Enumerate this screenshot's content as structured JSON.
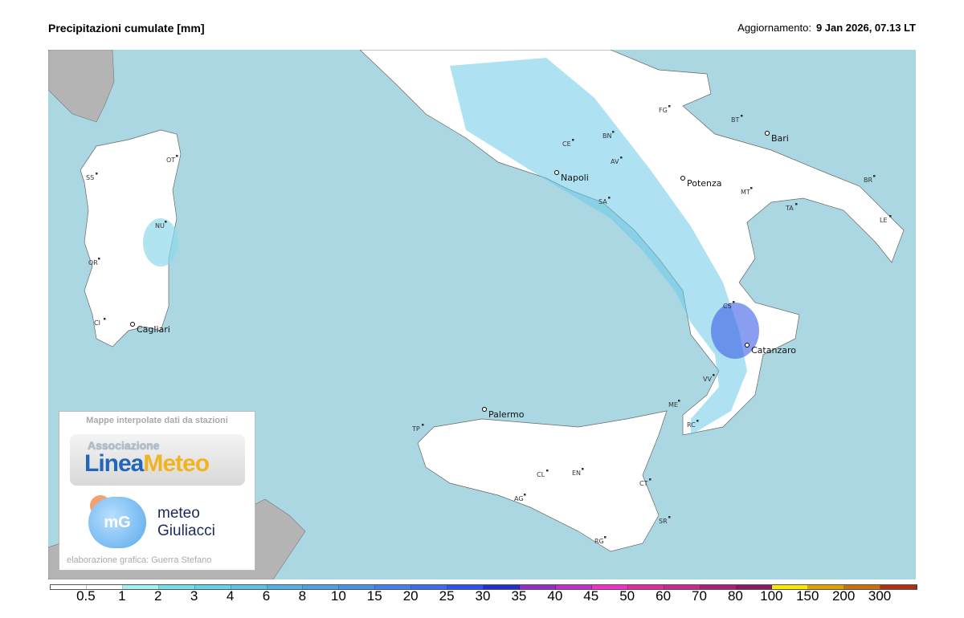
{
  "header": {
    "title": "Precipitazioni cumulate [mm]",
    "update_label": "Aggiornamento:",
    "update_value": "9 Jan 2026, 07.13 LT"
  },
  "colors": {
    "sea": "#abd7e3",
    "land": "#ffffff",
    "foreign_land": "#b4b4b4",
    "border": "#888888"
  },
  "cities": {
    "big": [
      "Napoli",
      "Potenza",
      "Bari",
      "Catanzaro",
      "Palermo",
      "Cagliari"
    ],
    "small": [
      "FG",
      "BT",
      "BR",
      "TA",
      "LE",
      "MT",
      "CE",
      "BN",
      "AV",
      "SA",
      "CS",
      "VV",
      "RC",
      "ME",
      "TP",
      "CL",
      "EN",
      "AG",
      "CT",
      "SR",
      "RG",
      "SS",
      "OT",
      "NU",
      "OR",
      "CI"
    ]
  },
  "logo": {
    "caption": "Mappe interpolate dati da stazioni",
    "linea_assoc": "Associazione",
    "linea_a": "Linea",
    "linea_b": "Meteo",
    "mg_icon": "mG",
    "mg_line1": "meteo",
    "mg_line2": "Giuliacci",
    "credit": "elaborazione grafica: Guerra Stefano"
  },
  "legend": {
    "ticks": [
      "0.5",
      "1",
      "2",
      "3",
      "4",
      "6",
      "8",
      "10",
      "15",
      "20",
      "25",
      "30",
      "35",
      "40",
      "45",
      "50",
      "60",
      "70",
      "80",
      "100",
      "150",
      "200",
      "300"
    ],
    "colors": [
      "#ffffff",
      "#ffffff",
      "#a6f2f2",
      "#74dfe8",
      "#64d2e8",
      "#5cc2e8",
      "#56b0e8",
      "#50a0e8",
      "#4a90ea",
      "#4280ec",
      "#3a6eee",
      "#3052f0",
      "#2030c8",
      "#9030c8",
      "#c030c8",
      "#f030c8",
      "#e02ca0",
      "#c82890",
      "#a82078",
      "#881860",
      "#f8e800",
      "#e0a000",
      "#c87010",
      "#b03010"
    ]
  }
}
